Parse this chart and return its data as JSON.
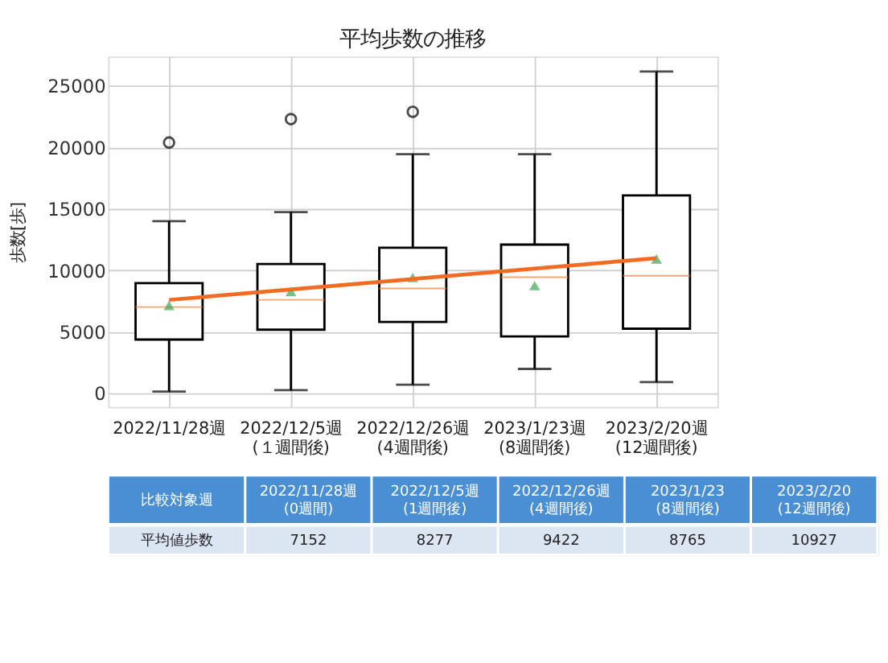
{
  "chart_data": {
    "type": "box",
    "title": "平均歩数の推移",
    "ylabel": "歩数[歩]",
    "categories": [
      "2022/11/28週",
      "2022/12/5週\n(１週間後)",
      "2022/12/26週\n(4週間後)",
      "2023/1/23週\n(8週間後)",
      "2023/2/20週\n(12週間後)"
    ],
    "series": [
      {
        "color": "#000000",
        "value_labels": [
          "7152",
          "8277",
          "9422",
          "8765",
          "10927"
        ],
        "boxes": [
          {
            "low": 150,
            "q1": 4380,
            "median": 7020,
            "q3": 8970,
            "high": 14000,
            "mean": 7152,
            "outliers": [
              20400
            ]
          },
          {
            "low": 260,
            "q1": 5180,
            "median": 7610,
            "q3": 10520,
            "high": 14740,
            "mean": 8277,
            "outliers": [
              22300
            ]
          },
          {
            "low": 700,
            "q1": 5810,
            "median": 8530,
            "q3": 11840,
            "high": 19450,
            "mean": 9422,
            "outliers": [
              22900
            ]
          },
          {
            "low": 1990,
            "q1": 4630,
            "median": 9450,
            "q3": 12100,
            "high": 19450,
            "mean": 8765
          },
          {
            "low": 920,
            "q1": 5260,
            "median": 9560,
            "q3": 16100,
            "high": 26180,
            "mean": 10927
          }
        ]
      },
      {
        "type": "line",
        "color": "#f26b22",
        "x": [
          "2022/11/28週",
          "2023/2/20週\n(12週間後)"
        ],
        "values": [
          7600,
          11000
        ]
      }
    ],
    "ylim": [
      -1100,
      27400
    ],
    "yticks": [
      0,
      5000,
      10000,
      15000,
      20000,
      25000
    ],
    "grid": true,
    "annotations": [
      "比較対象週",
      "2022/11/28週\n(0週間)",
      "2022/12/5週\n(1週間後)",
      "2022/12/26週\n(4週間後)",
      "2023/1/23\n(8週間後)",
      "2023/2/20\n(12週間後)",
      "平均値歩数"
    ]
  }
}
